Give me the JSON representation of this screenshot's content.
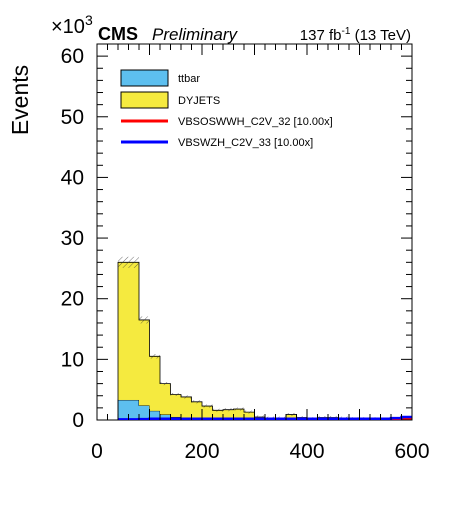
{
  "chart_data": {
    "type": "bar",
    "stacked": true,
    "histogram": true,
    "experiment": "CMS",
    "status": "Preliminary",
    "lumi_text": "137 fb",
    "lumi_exponent": "-1",
    "energy_text": " (13 TeV)",
    "ylabel": "Events",
    "y_multiplier_base": "×10",
    "y_multiplier_exp": "3",
    "xlim": [
      0,
      600
    ],
    "ylim": [
      0,
      62
    ],
    "x_ticks": [
      "0",
      "200",
      "400",
      "600"
    ],
    "y_ticks": [
      "0",
      "10",
      "20",
      "30",
      "40",
      "50",
      "60"
    ],
    "bin_edges": [
      40,
      80,
      100,
      120,
      140,
      160,
      180,
      200,
      220,
      240,
      260,
      280,
      300,
      320,
      340,
      360,
      380,
      400,
      420,
      440,
      460,
      480,
      500,
      520,
      540,
      560,
      580,
      600
    ],
    "series": [
      {
        "name": "ttbar",
        "style": "fill",
        "color": "#5dbfef",
        "values": [
          3.3,
          2.4,
          1.5,
          0.9,
          0.5,
          0.4,
          0.3,
          0.3,
          0.25,
          0.2,
          0.2,
          0.15,
          0.1,
          0.1,
          0.1,
          0.1,
          0.08,
          0.06,
          0.05,
          0.05,
          0.04,
          0.03,
          0.03,
          0.02,
          0.02,
          0.02,
          0.01
        ]
      },
      {
        "name": "DYJETS",
        "style": "fill",
        "color": "#f5ea3f",
        "values": [
          22.7,
          14.1,
          9.0,
          5.1,
          3.7,
          3.4,
          2.7,
          2.0,
          1.35,
          1.5,
          1.6,
          1.15,
          0.4,
          0.2,
          0.2,
          0.8,
          0.32,
          0.14,
          0.35,
          0.35,
          0.26,
          0.17,
          0.17,
          0.18,
          0.1,
          0.1,
          0.09
        ]
      },
      {
        "name": "VBSOSWWH_C2V_32 [10.00x]",
        "style": "line",
        "color": "#ff0000",
        "values": [
          0.05,
          0.08,
          0.1,
          0.1,
          0.1,
          0.1,
          0.1,
          0.1,
          0.1,
          0.1,
          0.1,
          0.1,
          0.1,
          0.1,
          0.1,
          0.1,
          0.1,
          0.1,
          0.1,
          0.1,
          0.1,
          0.1,
          0.1,
          0.1,
          0.1,
          0.1,
          0.15
        ]
      },
      {
        "name": "VBSWZH_C2V_33 [10.00x]",
        "style": "line",
        "color": "#0000ff",
        "values": [
          0.1,
          0.15,
          0.2,
          0.2,
          0.2,
          0.2,
          0.2,
          0.2,
          0.2,
          0.2,
          0.2,
          0.2,
          0.2,
          0.2,
          0.2,
          0.2,
          0.2,
          0.2,
          0.2,
          0.2,
          0.2,
          0.2,
          0.2,
          0.2,
          0.2,
          0.3,
          0.5
        ]
      }
    ],
    "uncertainty_band": "hatched",
    "legend_position": "top-left",
    "grid": false
  }
}
